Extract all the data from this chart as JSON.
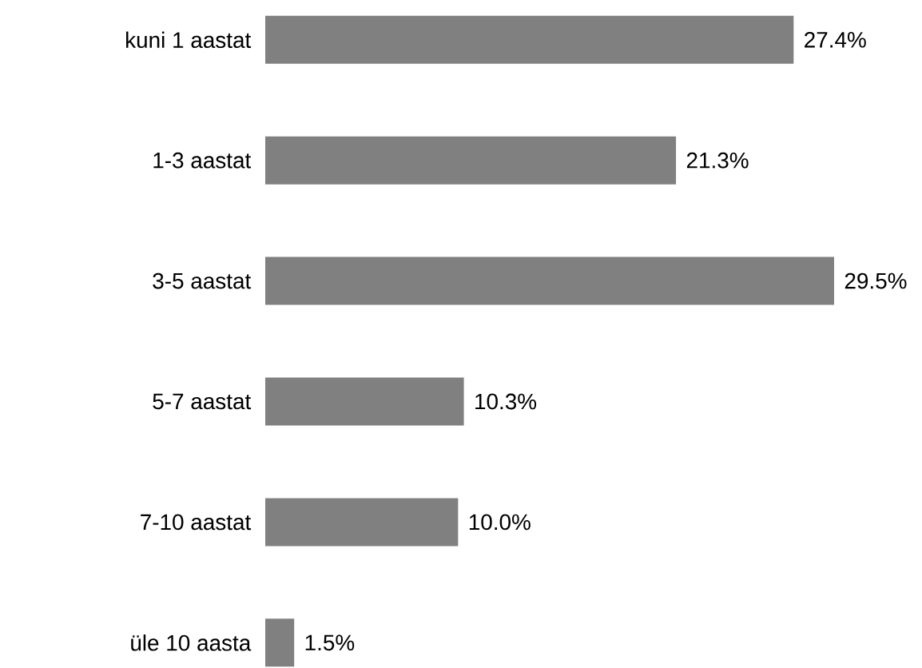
{
  "chart_data": {
    "type": "bar",
    "orientation": "horizontal",
    "categories": [
      "kuni 1 aastat",
      "1-3 aastat",
      "3-5 aastat",
      "5-7 aastat",
      "7-10 aastat",
      "üle 10 aasta"
    ],
    "values": [
      27.4,
      21.3,
      29.5,
      10.3,
      10.0,
      1.5
    ],
    "value_labels": [
      "27.4%",
      "21.3%",
      "29.5%",
      "10.3%",
      "10.0%",
      "1.5%"
    ],
    "color": "#808080"
  }
}
